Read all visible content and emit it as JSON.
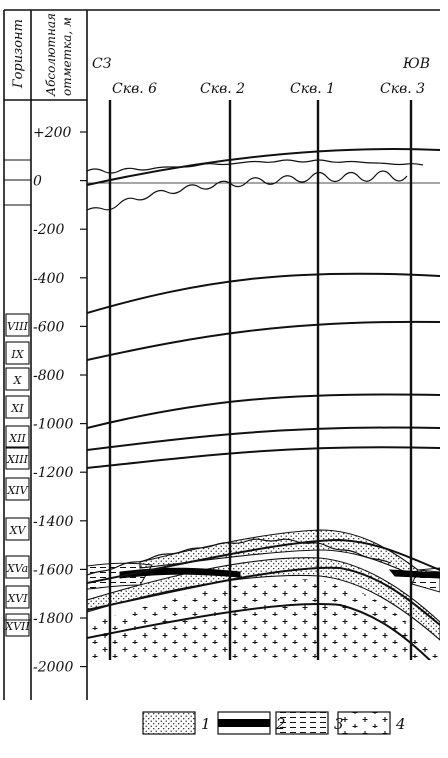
{
  "header": {
    "col_horizon": "Горизонт",
    "col_elevation_line1": "Абсолютная",
    "col_elevation_line2": "отметка, м",
    "dir_left": "СЗ",
    "dir_right": "ЮВ"
  },
  "wells": [
    "Скв. 6",
    "Скв. 2",
    "Скв. 1",
    "Скв. 3"
  ],
  "elevation_ticks": [
    "+200",
    "0",
    "-200",
    "-400",
    "-600",
    "-800",
    "-1000",
    "-1200",
    "-1400",
    "-1600",
    "-1800",
    "-2000"
  ],
  "horizons": [
    "VIII",
    "IX",
    "X",
    "XI",
    "XII",
    "XIII",
    "XIV",
    "XV",
    "XVa",
    "XVI",
    "XVII"
  ],
  "legend": [
    {
      "number": "1",
      "pattern": "dotted-sand"
    },
    {
      "number": "2",
      "pattern": "solid-black-band"
    },
    {
      "number": "3",
      "pattern": "dashed-hatch"
    },
    {
      "number": "4",
      "pattern": "crosses-basement"
    }
  ]
}
